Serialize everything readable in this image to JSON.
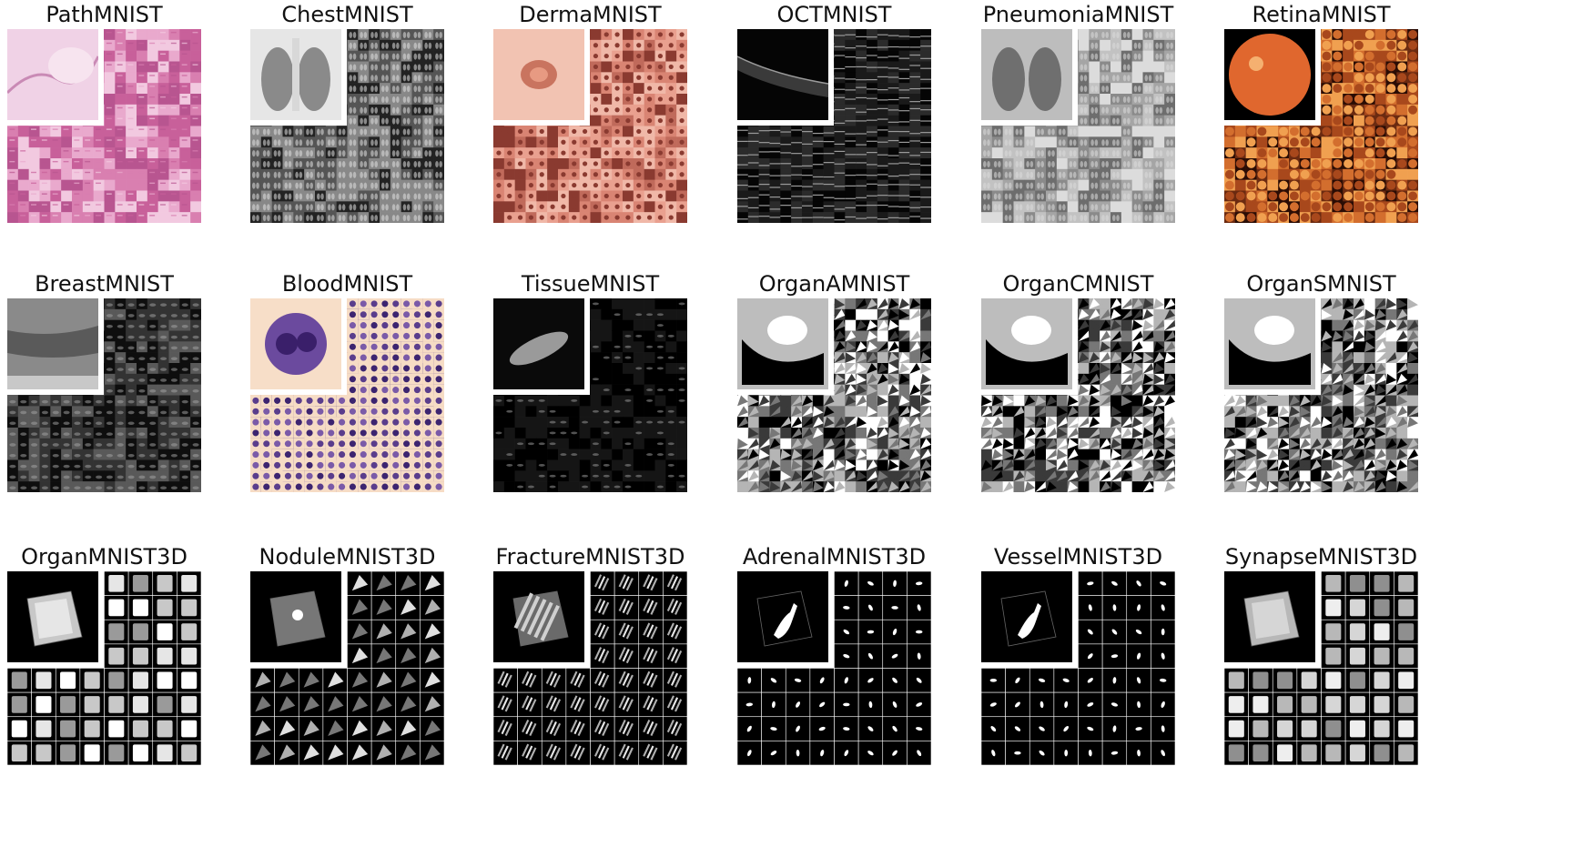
{
  "rows": [
    {
      "panels": [
        {
          "name": "PathMNIST",
          "style": "path",
          "palette": [
            "#d97fb0",
            "#e9a9cd",
            "#c8609a",
            "#f2c9e0",
            "#b85590"
          ],
          "inset": "path-inset"
        },
        {
          "name": "ChestMNIST",
          "style": "chest",
          "palette": [
            "#222222",
            "#555555",
            "#888888",
            "#bbbbbb",
            "#e0e0e0"
          ],
          "inset": "chest-inset"
        },
        {
          "name": "DermaMNIST",
          "style": "derma",
          "palette": [
            "#e9a08f",
            "#d98473",
            "#c06a5b",
            "#f0b8a8",
            "#8a3a30"
          ],
          "inset": "derma-inset"
        },
        {
          "name": "OCTMNIST",
          "style": "oct",
          "palette": [
            "#050505",
            "#1a1a1a",
            "#2b2b2b",
            "#5a5a5a",
            "#9a9a9a"
          ],
          "inset": "oct-inset"
        },
        {
          "name": "PneumoniaMNIST",
          "style": "pneumonia",
          "palette": [
            "#6d6d6d",
            "#8a8a8a",
            "#a5a5a5",
            "#c2c2c2",
            "#dcdcdc"
          ],
          "inset": "pneumonia-inset"
        },
        {
          "name": "RetinaMNIST",
          "style": "retina",
          "palette": [
            "#2a0c04",
            "#6b2a10",
            "#a8481c",
            "#d36e2e",
            "#f0a050"
          ],
          "inset": "retina-inset"
        }
      ]
    },
    {
      "panels": [
        {
          "name": "BreastMNIST",
          "style": "breast",
          "palette": [
            "#0e0e0e",
            "#333333",
            "#595959",
            "#7f7f7f",
            "#a8a8a8"
          ],
          "inset": "breast-inset"
        },
        {
          "name": "BloodMNIST",
          "style": "blood",
          "palette": [
            "#f6dcc5",
            "#ecc7ae",
            "#5a3d8c",
            "#7a5aa8",
            "#3c2470"
          ],
          "inset": "blood-inset"
        },
        {
          "name": "TissueMNIST",
          "style": "tissue",
          "palette": [
            "#000000",
            "#151515",
            "#2c2c2c",
            "#505050",
            "#8a8a8a"
          ],
          "inset": "tissue-inset"
        },
        {
          "name": "OrganAMNIST",
          "style": "organ",
          "palette": [
            "#000000",
            "#3a3a3a",
            "#777777",
            "#b5b5b5",
            "#ffffff"
          ],
          "inset": "organa-inset"
        },
        {
          "name": "OrganCMNIST",
          "style": "organ",
          "palette": [
            "#000000",
            "#3a3a3a",
            "#777777",
            "#b5b5b5",
            "#ffffff"
          ],
          "inset": "organc-inset"
        },
        {
          "name": "OrganSMNIST",
          "style": "organ",
          "palette": [
            "#000000",
            "#3a3a3a",
            "#777777",
            "#b5b5b5",
            "#ffffff"
          ],
          "inset": "organs-inset"
        }
      ]
    },
    {
      "panels": [
        {
          "name": "OrganMNIST3D",
          "style": "vol-gray",
          "palette": [
            "#000000",
            "#9a9a9a",
            "#c8c8c8",
            "#e6e6e6",
            "#ffffff"
          ],
          "inset": "organ3d-inset"
        },
        {
          "name": "NoduleMNIST3D",
          "style": "vol-dark",
          "palette": [
            "#000000",
            "#3a3a3a",
            "#777777",
            "#b0b0b0",
            "#e0e0e0"
          ],
          "inset": "nodule3d-inset"
        },
        {
          "name": "FractureMNIST3D",
          "style": "vol-strip",
          "palette": [
            "#000000",
            "#2a2a2a",
            "#6a6a6a",
            "#b0b0b0",
            "#e8e8e8"
          ],
          "inset": "fracture3d-inset"
        },
        {
          "name": "AdrenalMNIST3D",
          "style": "vol-blob",
          "palette": [
            "#000000",
            "#000000",
            "#333333",
            "#cccccc",
            "#ffffff"
          ],
          "inset": "adrenal3d-inset"
        },
        {
          "name": "VesselMNIST3D",
          "style": "vol-blob",
          "palette": [
            "#000000",
            "#000000",
            "#333333",
            "#cccccc",
            "#ffffff"
          ],
          "inset": "vessel3d-inset"
        },
        {
          "name": "SynapseMNIST3D",
          "style": "vol-gray",
          "palette": [
            "#000000",
            "#8f8f8f",
            "#b8b8b8",
            "#d6d6d6",
            "#eeeeee"
          ],
          "inset": "synapse3d-inset"
        }
      ]
    }
  ]
}
